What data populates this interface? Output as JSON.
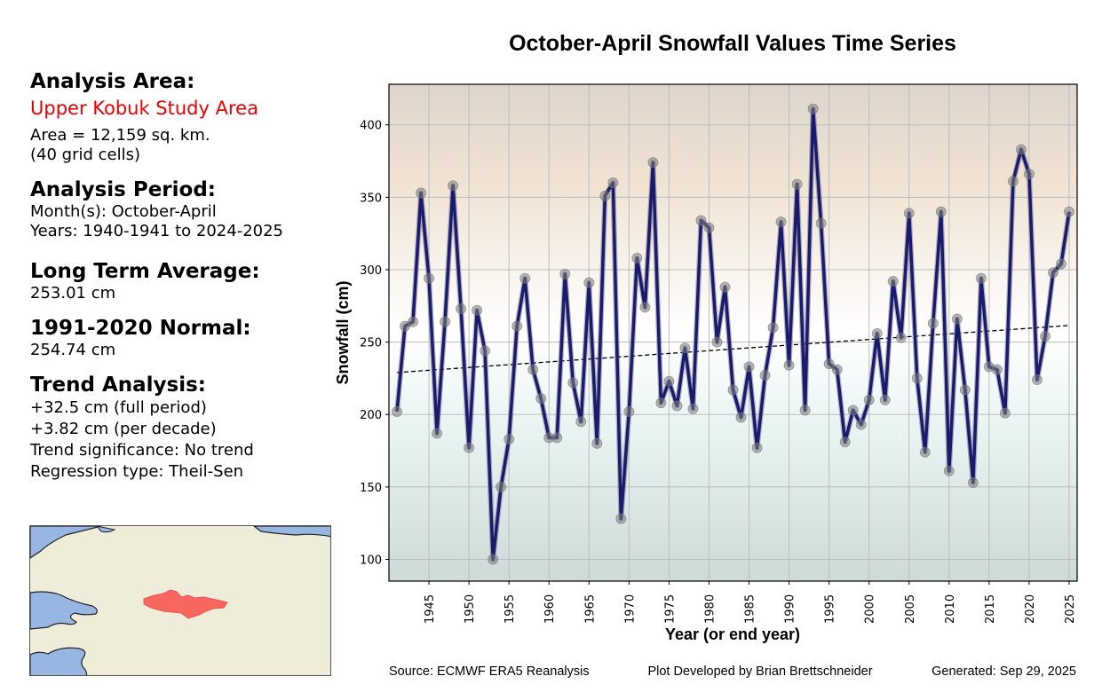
{
  "info_panel": {
    "area_heading": "Analysis Area:",
    "area_name": "Upper Kobuk Study Area",
    "area_size": "Area = 12,159 sq. km.",
    "grid_cells": "(40 grid cells)",
    "period_heading": "Analysis Period:",
    "months": "Month(s): October-April",
    "years": "Years: 1940-1941 to 2024-2025",
    "avg_heading": "Long Term Average:",
    "avg_value": "253.01 cm",
    "normal_heading": "1991-2020 Normal:",
    "normal_value": "254.74 cm",
    "trend_heading": "Trend Analysis:",
    "trend_full": "+32.5 cm (full period)",
    "trend_decade": "+3.82 cm (per decade)",
    "trend_significance": "Trend significance: No trend",
    "regression_type": "Regression type: Theil-Sen"
  },
  "footer": {
    "source": "Source: ECMWF ERA5 Reanalysis",
    "developer": "Plot Developed by Brian Brettschneider",
    "generated": "Generated: Sep 29, 2025"
  },
  "colors": {
    "line": "#1a1a6e",
    "marker": "#808080",
    "trend": "#000000",
    "area_name": "#ee0000",
    "map_land": "#efedda",
    "map_water": "#97b6e2",
    "map_region": "#f8675f",
    "bg_top": "#ded5cc",
    "bg_mid": "#ffffff",
    "bg_bottom": "#ccdad8"
  },
  "chart_data": {
    "type": "line",
    "title": "October-April Snowfall Values Time Series",
    "xlabel": "Year (or end year)",
    "ylabel": "Snowfall (cm)",
    "xlim": [
      1940,
      2026
    ],
    "ylim": [
      85,
      428
    ],
    "grid": true,
    "x_ticks": [
      1945,
      1950,
      1955,
      1960,
      1965,
      1970,
      1975,
      1980,
      1985,
      1990,
      1995,
      2000,
      2005,
      2010,
      2015,
      2020,
      2025
    ],
    "y_ticks": [
      100,
      150,
      200,
      250,
      300,
      350,
      400
    ],
    "series": [
      {
        "name": "Snowfall",
        "x": [
          1941,
          1942,
          1943,
          1944,
          1945,
          1946,
          1947,
          1948,
          1949,
          1950,
          1951,
          1952,
          1953,
          1954,
          1955,
          1956,
          1957,
          1958,
          1959,
          1960,
          1961,
          1962,
          1963,
          1964,
          1965,
          1966,
          1967,
          1968,
          1969,
          1970,
          1971,
          1972,
          1973,
          1974,
          1975,
          1976,
          1977,
          1978,
          1979,
          1980,
          1981,
          1982,
          1983,
          1984,
          1985,
          1986,
          1987,
          1988,
          1989,
          1990,
          1991,
          1992,
          1993,
          1994,
          1995,
          1996,
          1997,
          1998,
          1999,
          2000,
          2001,
          2002,
          2003,
          2004,
          2005,
          2006,
          2007,
          2008,
          2009,
          2010,
          2011,
          2012,
          2013,
          2014,
          2015,
          2016,
          2017,
          2018,
          2019,
          2020,
          2021,
          2022,
          2023,
          2024,
          2025
        ],
        "values": [
          202,
          261,
          264,
          353,
          294,
          187,
          264,
          358,
          273,
          177,
          272,
          244,
          100,
          150,
          183,
          261,
          294,
          231,
          211,
          184,
          184,
          297,
          222,
          195,
          291,
          180,
          351,
          360,
          128,
          202,
          308,
          274,
          374,
          208,
          223,
          206,
          246,
          204,
          334,
          329,
          250,
          288,
          217,
          198,
          233,
          177,
          227,
          260,
          333,
          234,
          359,
          203,
          411,
          332,
          235,
          231,
          181,
          203,
          193,
          210,
          256,
          210,
          292,
          253,
          339,
          225,
          174,
          263,
          340,
          161,
          266,
          217,
          153,
          294,
          233,
          231,
          201,
          361,
          383,
          366,
          224,
          254,
          298,
          304,
          340
        ]
      }
    ],
    "trend_line": {
      "name": "Theil-Sen trend",
      "x": [
        1941,
        2025
      ],
      "values": [
        229,
        261.5
      ]
    }
  }
}
